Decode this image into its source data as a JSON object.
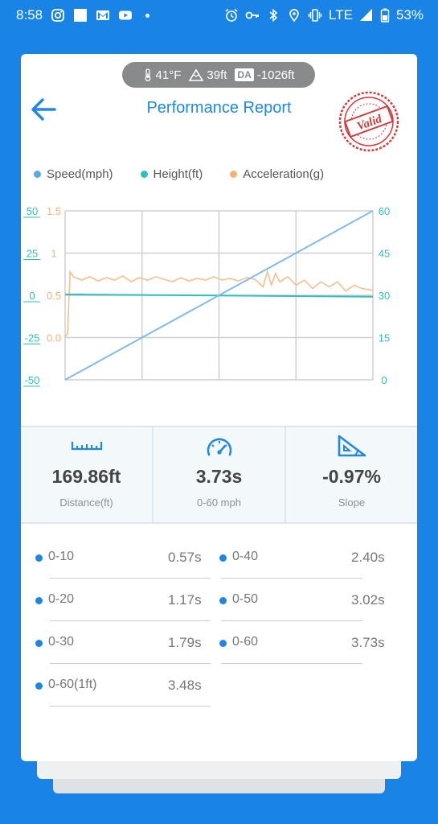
{
  "status": {
    "time": "8:58",
    "network": "LTE",
    "battery": "53%"
  },
  "env": {
    "temp": "41°F",
    "altitude": "39ft",
    "da_label": "DA",
    "da_value": "-1026ft"
  },
  "header": {
    "title": "Performance Report",
    "stamp_text": "Valid"
  },
  "colors": {
    "speed": "#7fbbea",
    "height": "#2ec0bb",
    "accel": "#f5b27a",
    "accent": "#1f87e5"
  },
  "chart_data": {
    "type": "line",
    "legend": [
      {
        "name": "Speed(mph)",
        "color": "#5aa8e8"
      },
      {
        "name": "Height(ft)",
        "color": "#2ec0bb"
      },
      {
        "name": "Acceleration(g)",
        "color": "#f5b27a"
      }
    ],
    "axes": {
      "height_ticks": [
        "50",
        "25",
        "0",
        "-25",
        "-50"
      ],
      "accel_ticks": [
        "1.5",
        "1",
        "0.5",
        "0.0"
      ],
      "speed_ticks": [
        "60",
        "45",
        "30",
        "15",
        "0"
      ],
      "height_range": [
        -50,
        50
      ],
      "accel_range": [
        -0.5,
        1.5
      ],
      "speed_range": [
        0,
        60
      ]
    },
    "grid": true,
    "x_range": [
      0,
      3.73
    ],
    "series": [
      {
        "name": "Speed(mph)",
        "x": [
          0,
          3.73
        ],
        "y": [
          0,
          60
        ]
      },
      {
        "name": "Height(ft)",
        "x": [
          0,
          3.73
        ],
        "y": [
          0.5,
          -0.8
        ]
      },
      {
        "name": "Acceleration(g)",
        "x": [
          0,
          0.03,
          0.06,
          0.1,
          0.2,
          0.3,
          0.4,
          0.5,
          0.6,
          0.7,
          0.8,
          0.9,
          1.0,
          1.1,
          1.2,
          1.3,
          1.4,
          1.5,
          1.6,
          1.7,
          1.8,
          1.9,
          2.0,
          2.1,
          2.2,
          2.3,
          2.4,
          2.45,
          2.5,
          2.55,
          2.6,
          2.7,
          2.8,
          2.9,
          3.0,
          3.1,
          3.2,
          3.3,
          3.4,
          3.5,
          3.6,
          3.73
        ],
        "y": [
          0.0,
          0.05,
          0.78,
          0.72,
          0.68,
          0.72,
          0.67,
          0.71,
          0.68,
          0.73,
          0.66,
          0.71,
          0.68,
          0.72,
          0.69,
          0.66,
          0.71,
          0.67,
          0.7,
          0.68,
          0.72,
          0.68,
          0.7,
          0.67,
          0.71,
          0.69,
          0.6,
          0.78,
          0.62,
          0.76,
          0.66,
          0.72,
          0.62,
          0.68,
          0.58,
          0.66,
          0.6,
          0.66,
          0.55,
          0.62,
          0.58,
          0.56
        ]
      }
    ]
  },
  "stats": [
    {
      "value": "169.86ft",
      "label": "Distance(ft)"
    },
    {
      "value": "3.73s",
      "label": "0-60 mph"
    },
    {
      "value": "-0.97%",
      "label": "Slope"
    }
  ],
  "splits": [
    {
      "label": "0-10",
      "value": "0.57s"
    },
    {
      "label": "0-40",
      "value": "2.40s"
    },
    {
      "label": "0-20",
      "value": "1.17s"
    },
    {
      "label": "0-50",
      "value": "3.02s"
    },
    {
      "label": "0-30",
      "value": "1.79s"
    },
    {
      "label": "0-60",
      "value": "3.73s"
    },
    {
      "label": "0-60(1ft)",
      "value": "3.48s"
    }
  ]
}
